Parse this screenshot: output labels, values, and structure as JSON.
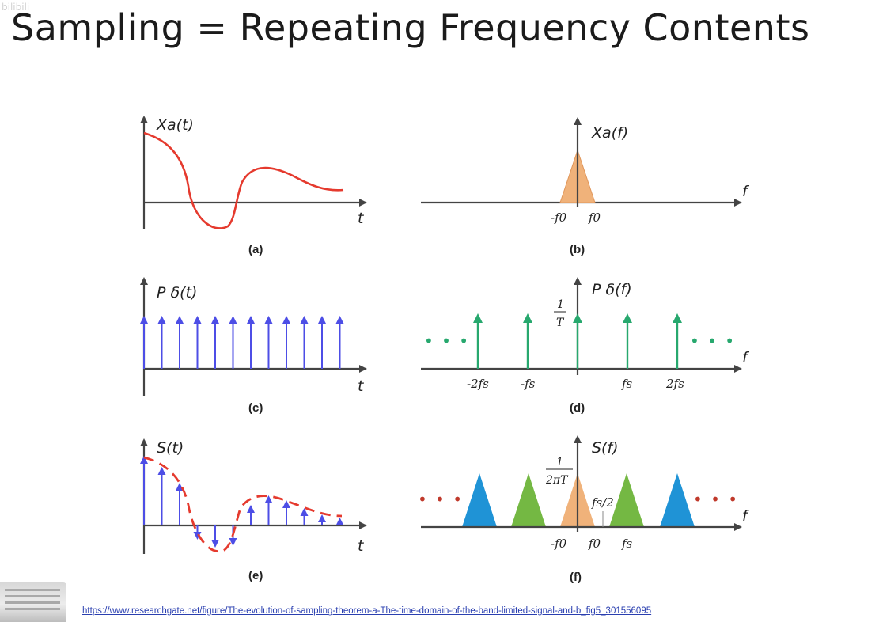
{
  "slide": {
    "title": "Sampling = Repeating Frequency Contents",
    "watermark": "bilibili",
    "source_url": "https://www.researchgate.net/figure/The-evolution-of-sampling-theorem-a-The-time-domain-of-the-band-limited-signal-and-b_fig5_301556095"
  },
  "panels": {
    "a": {
      "caption": "(a)",
      "ylabel": "Xa(t)",
      "xlabel": "t"
    },
    "b": {
      "caption": "(b)",
      "ylabel": "Xa(f)",
      "xlabel": "f",
      "tick_neg": "-f0",
      "tick_pos": "f0"
    },
    "c": {
      "caption": "(c)",
      "ylabel": "P δ(t)",
      "xlabel": "t"
    },
    "d": {
      "caption": "(d)",
      "ylabel": "P δ(f)",
      "xlabel": "f",
      "height_num": "1",
      "height_den": "T",
      "ticks": [
        "-2fs",
        "-fs",
        "fs",
        "2fs"
      ],
      "dots": "• • •"
    },
    "e": {
      "caption": "(e)",
      "ylabel": "S(t)",
      "xlabel": "t"
    },
    "f": {
      "caption": "(f)",
      "ylabel": "S(f)",
      "xlabel": "f",
      "height_num": "1",
      "height_den": "2πT",
      "half_label": "fs/2",
      "ticks": [
        "-f0",
        "f0",
        "fs"
      ],
      "dots": "• • •"
    }
  },
  "colors": {
    "signal": "#e53a2e",
    "impulse_time": "#4d4ee6",
    "impulse_freq": "#27a86e",
    "spectrum_base": "#f0b27a",
    "spectrum_alias1": "#74b843",
    "spectrum_alias2": "#1f93d6",
    "dots_d": "#27a86e",
    "dots_f": "#c0392b"
  }
}
